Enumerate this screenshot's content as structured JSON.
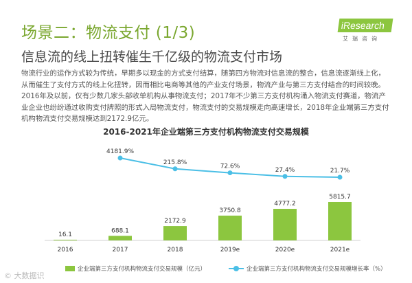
{
  "header": {
    "title": "场景二：物流支付 (1/3)",
    "logo_text": "iResearch",
    "logo_sub": "艾瑞咨询"
  },
  "subtitle": "信息流的线上扭转催生千亿级的物流支付市场",
  "body": "物流行业的运作方式较为传统，早期多以现金的方式支付结算，随第四方物流对信息流的整合，信息流逐渐线上化，从而催生了支付方式的线上化扭转，因而相比电商等其他的产业支付场景，物流产业与第三方支付结合的时间较晚。2016年及以前，仅有少数几家头部收单机构从事物流支付；2017年不少第三方支付机构涌入物流支付赛道，物流产业企业也纷纷通过收购支付牌照的形式入局物流支付，物流支付的交易规模走向高速增长，2018年企业端第三方支付机构物流支付交易规模达到2172.9亿元。",
  "watermark": "© 大数据识",
  "chart_data": {
    "type": "bar",
    "title": "2016-2021年企业端第三方支付机构物流支付交易规模",
    "categories": [
      "2016",
      "2017",
      "2018",
      "2019e",
      "2020e",
      "2021e"
    ],
    "series": [
      {
        "name": "企业端第三方支付机构物流支付交易规模（亿元）",
        "type": "bar",
        "color": "#8cc63f",
        "values": [
          16.1,
          688.1,
          2172.9,
          3750.8,
          4777.2,
          5815.7
        ],
        "labels": [
          "16.1",
          "688.1",
          "2172.9",
          "3750.8",
          "4777.2",
          "5815.7"
        ]
      },
      {
        "name": "企业端第三方支付机构物流支付交易规模增长率（%）",
        "type": "line",
        "color": "#4bbfe6",
        "x": [
          "2017",
          "2018",
          "2019e",
          "2020e",
          "2021e"
        ],
        "values": [
          4181.9,
          215.8,
          72.6,
          27.4,
          21.7
        ],
        "labels": [
          "4181.9%",
          "215.8%",
          "72.6%",
          "27.4%",
          "21.7%"
        ]
      }
    ],
    "legend_position": "bottom",
    "grid": false
  }
}
